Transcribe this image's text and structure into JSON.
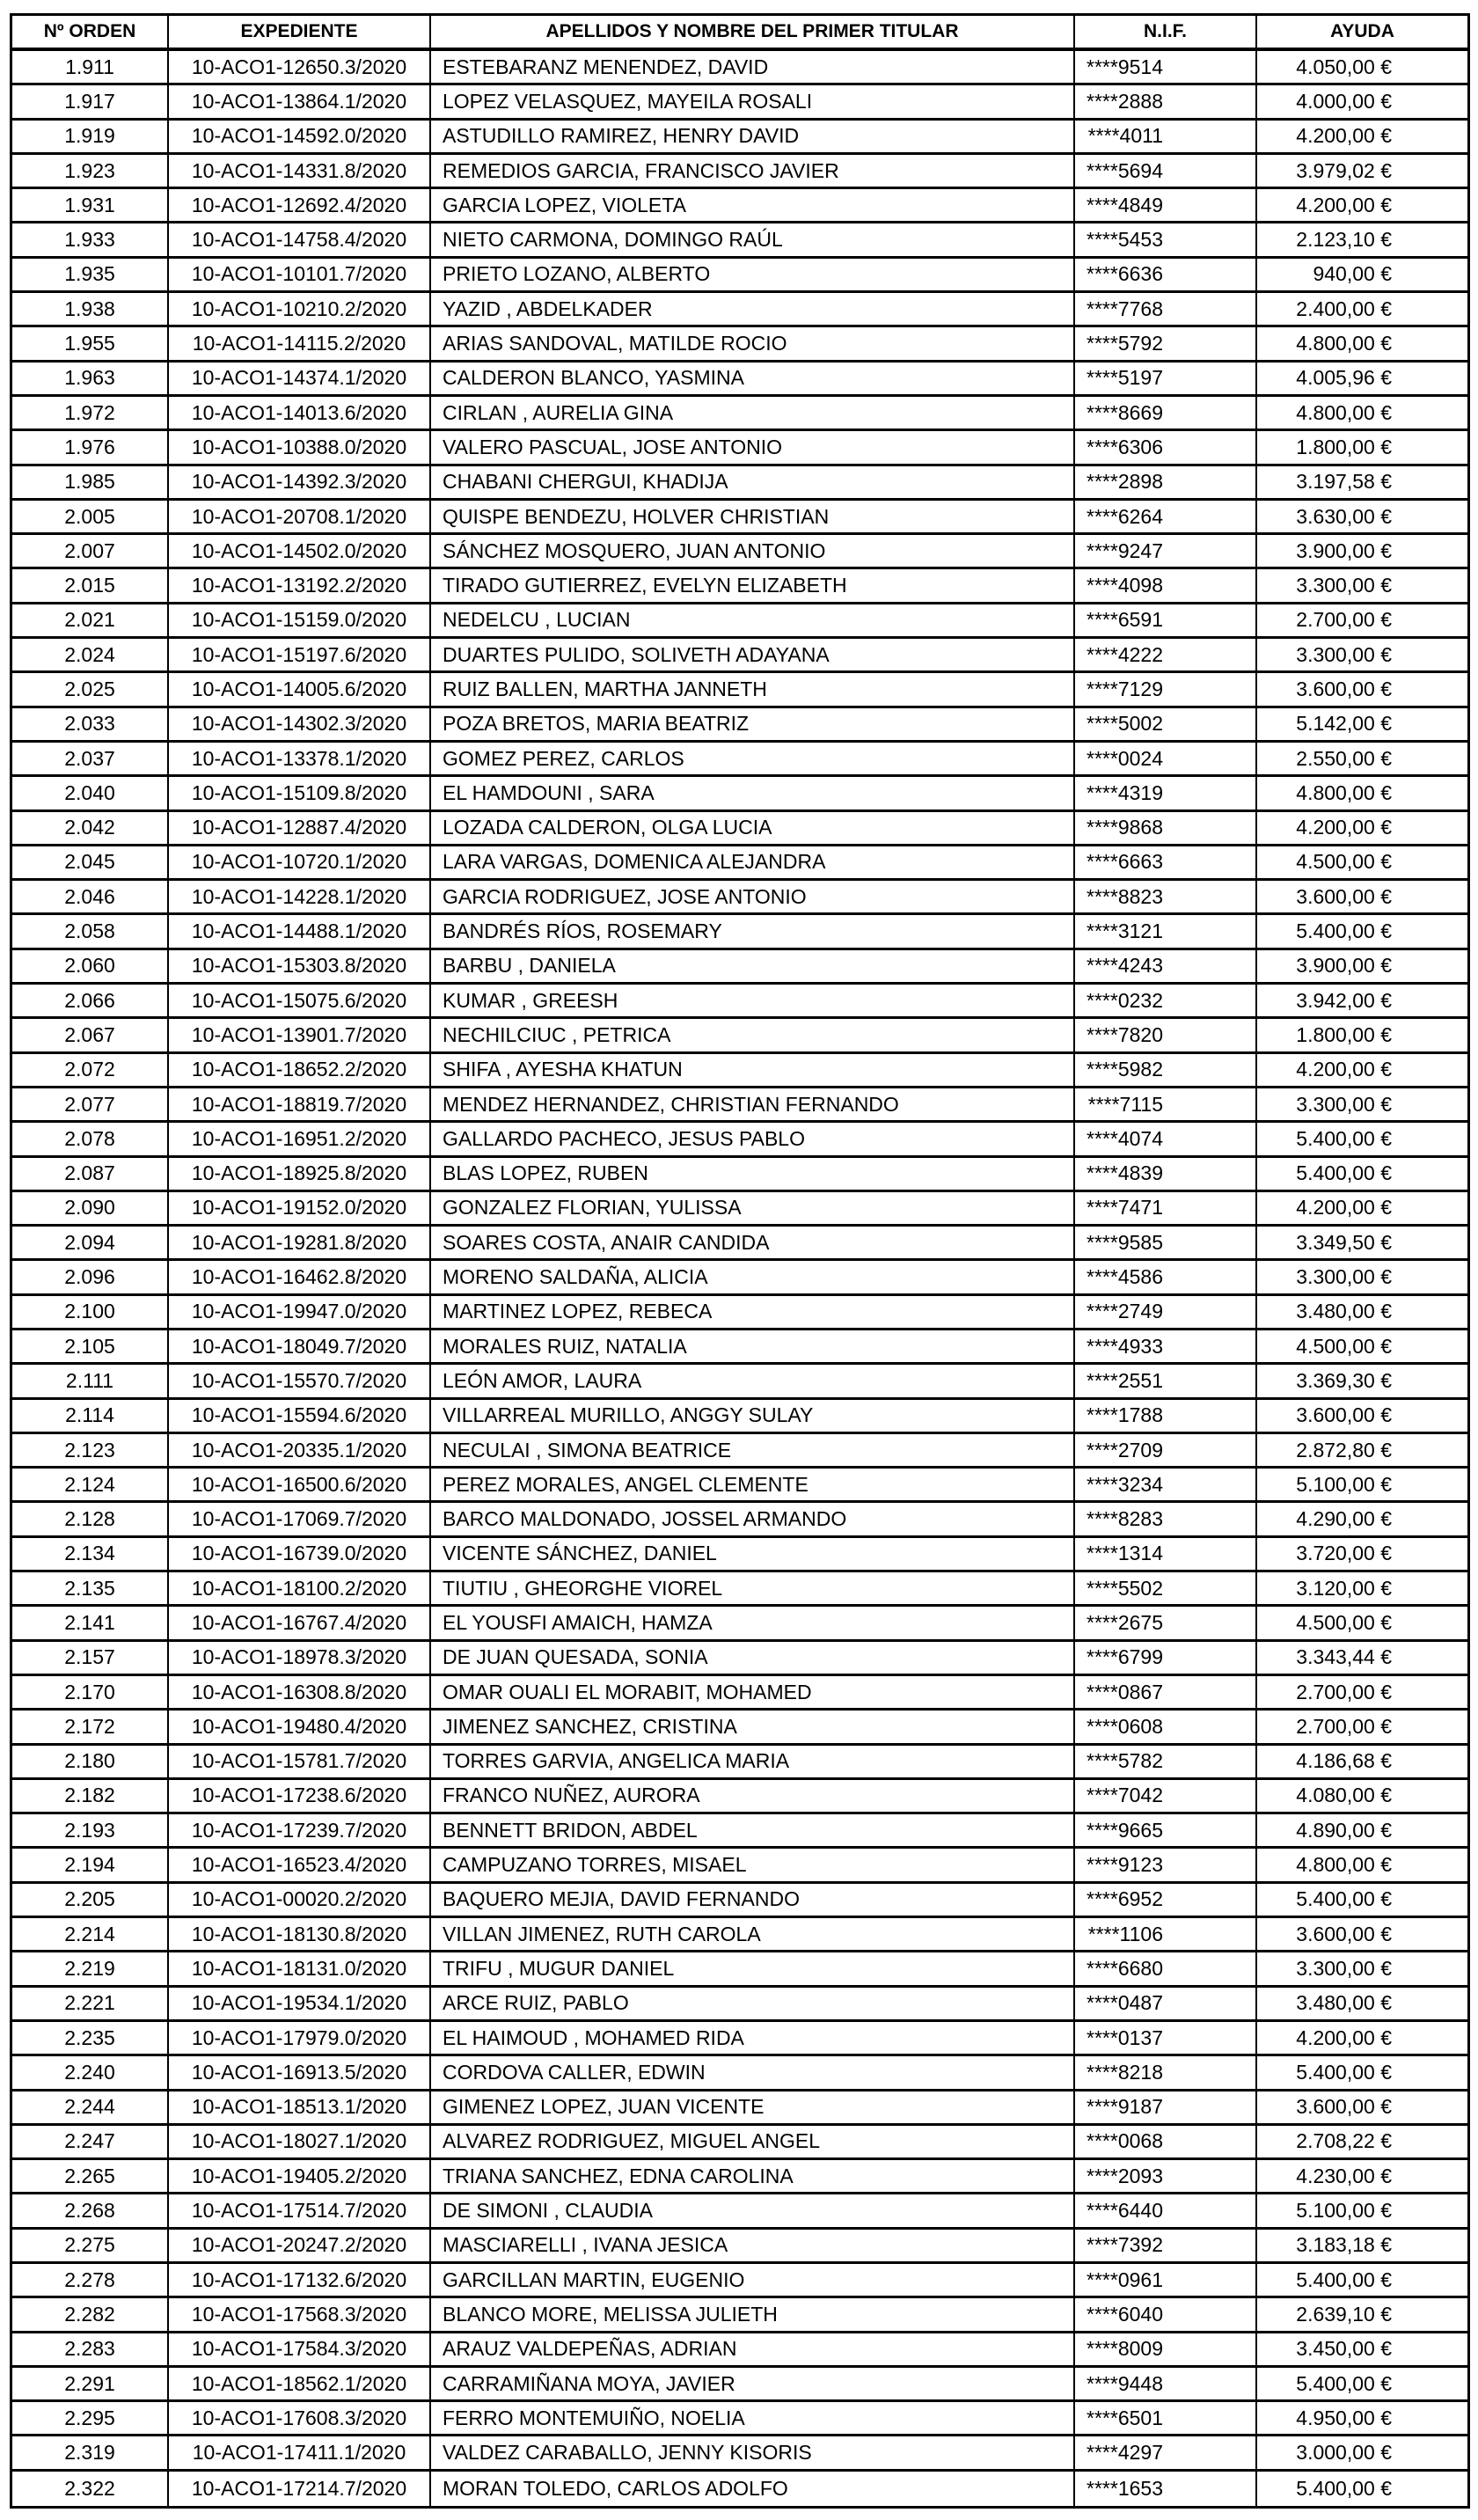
{
  "table": {
    "headers": [
      "Nº ORDEN",
      "EXPEDIENTE",
      "APELLIDOS Y NOMBRE DEL PRIMER TITULAR",
      "N.I.F.",
      "AYUDA"
    ],
    "rows": [
      [
        "1.911",
        "10-ACO1-12650.3/2020",
        "ESTEBARANZ MENENDEZ, DAVID",
        "****9514",
        "4.050,00 €"
      ],
      [
        "1.917",
        "10-ACO1-13864.1/2020",
        "LOPEZ VELASQUEZ, MAYEILA ROSALI",
        "****2888",
        "4.000,00 €"
      ],
      [
        "1.919",
        "10-ACO1-14592.0/2020",
        "ASTUDILLO RAMIREZ, HENRY DAVID",
        "****4011",
        "4.200,00 €"
      ],
      [
        "1.923",
        "10-ACO1-14331.8/2020",
        "REMEDIOS GARCIA, FRANCISCO JAVIER",
        "****5694",
        "3.979,02 €"
      ],
      [
        "1.931",
        "10-ACO1-12692.4/2020",
        "GARCIA LOPEZ, VIOLETA",
        "****4849",
        "4.200,00 €"
      ],
      [
        "1.933",
        "10-ACO1-14758.4/2020",
        "NIETO CARMONA, DOMINGO RAÚL",
        "****5453",
        "2.123,10 €"
      ],
      [
        "1.935",
        "10-ACO1-10101.7/2020",
        "PRIETO LOZANO, ALBERTO",
        "****6636",
        "940,00 €"
      ],
      [
        "1.938",
        "10-ACO1-10210.2/2020",
        "YAZID , ABDELKADER",
        "****7768",
        "2.400,00 €"
      ],
      [
        "1.955",
        "10-ACO1-14115.2/2020",
        "ARIAS SANDOVAL, MATILDE ROCIO",
        "****5792",
        "4.800,00 €"
      ],
      [
        "1.963",
        "10-ACO1-14374.1/2020",
        "CALDERON BLANCO, YASMINA",
        "****5197",
        "4.005,96 €"
      ],
      [
        "1.972",
        "10-ACO1-14013.6/2020",
        "CIRLAN , AURELIA GINA",
        "****8669",
        "4.800,00 €"
      ],
      [
        "1.976",
        "10-ACO1-10388.0/2020",
        "VALERO PASCUAL, JOSE ANTONIO",
        "****6306",
        "1.800,00 €"
      ],
      [
        "1.985",
        "10-ACO1-14392.3/2020",
        "CHABANI CHERGUI, KHADIJA",
        "****2898",
        "3.197,58 €"
      ],
      [
        "2.005",
        "10-ACO1-20708.1/2020",
        "QUISPE BENDEZU, HOLVER CHRISTIAN",
        "****6264",
        "3.630,00 €"
      ],
      [
        "2.007",
        "10-ACO1-14502.0/2020",
        "SÁNCHEZ MOSQUERO, JUAN ANTONIO",
        "****9247",
        "3.900,00 €"
      ],
      [
        "2.015",
        "10-ACO1-13192.2/2020",
        "TIRADO GUTIERREZ, EVELYN ELIZABETH",
        "****4098",
        "3.300,00 €"
      ],
      [
        "2.021",
        "10-ACO1-15159.0/2020",
        "NEDELCU , LUCIAN",
        "****6591",
        "2.700,00 €"
      ],
      [
        "2.024",
        "10-ACO1-15197.6/2020",
        "DUARTES PULIDO, SOLIVETH ADAYANA",
        "****4222",
        "3.300,00 €"
      ],
      [
        "2.025",
        "10-ACO1-14005.6/2020",
        "RUIZ BALLEN, MARTHA JANNETH",
        "****7129",
        "3.600,00 €"
      ],
      [
        "2.033",
        "10-ACO1-14302.3/2020",
        "POZA BRETOS, MARIA BEATRIZ",
        "****5002",
        "5.142,00 €"
      ],
      [
        "2.037",
        "10-ACO1-13378.1/2020",
        "GOMEZ PEREZ, CARLOS",
        "****0024",
        "2.550,00 €"
      ],
      [
        "2.040",
        "10-ACO1-15109.8/2020",
        "EL HAMDOUNI , SARA",
        "****4319",
        "4.800,00 €"
      ],
      [
        "2.042",
        "10-ACO1-12887.4/2020",
        "LOZADA CALDERON, OLGA LUCIA",
        "****9868",
        "4.200,00 €"
      ],
      [
        "2.045",
        "10-ACO1-10720.1/2020",
        "LARA VARGAS, DOMENICA ALEJANDRA",
        "****6663",
        "4.500,00 €"
      ],
      [
        "2.046",
        "10-ACO1-14228.1/2020",
        "GARCIA RODRIGUEZ, JOSE ANTONIO",
        "****8823",
        "3.600,00 €"
      ],
      [
        "2.058",
        "10-ACO1-14488.1/2020",
        "BANDRÉS RÍOS, ROSEMARY",
        "****3121",
        "5.400,00 €"
      ],
      [
        "2.060",
        "10-ACO1-15303.8/2020",
        "BARBU , DANIELA",
        "****4243",
        "3.900,00 €"
      ],
      [
        "2.066",
        "10-ACO1-15075.6/2020",
        "KUMAR , GREESH",
        "****0232",
        "3.942,00 €"
      ],
      [
        "2.067",
        "10-ACO1-13901.7/2020",
        "NECHILCIUC , PETRICA",
        "****7820",
        "1.800,00 €"
      ],
      [
        "2.072",
        "10-ACO1-18652.2/2020",
        "SHIFA , AYESHA KHATUN",
        "****5982",
        "4.200,00 €"
      ],
      [
        "2.077",
        "10-ACO1-18819.7/2020",
        "MENDEZ HERNANDEZ, CHRISTIAN FERNANDO",
        "****7115",
        "3.300,00 €"
      ],
      [
        "2.078",
        "10-ACO1-16951.2/2020",
        "GALLARDO PACHECO, JESUS PABLO",
        "****4074",
        "5.400,00 €"
      ],
      [
        "2.087",
        "10-ACO1-18925.8/2020",
        "BLAS LOPEZ, RUBEN",
        "****4839",
        "5.400,00 €"
      ],
      [
        "2.090",
        "10-ACO1-19152.0/2020",
        "GONZALEZ FLORIAN, YULISSA",
        "****7471",
        "4.200,00 €"
      ],
      [
        "2.094",
        "10-ACO1-19281.8/2020",
        "SOARES COSTA, ANAIR CANDIDA",
        "****9585",
        "3.349,50 €"
      ],
      [
        "2.096",
        "10-ACO1-16462.8/2020",
        "MORENO SALDAÑA, ALICIA",
        "****4586",
        "3.300,00 €"
      ],
      [
        "2.100",
        "10-ACO1-19947.0/2020",
        "MARTINEZ LOPEZ, REBECA",
        "****2749",
        "3.480,00 €"
      ],
      [
        "2.105",
        "10-ACO1-18049.7/2020",
        "MORALES RUIZ, NATALIA",
        "****4933",
        "4.500,00 €"
      ],
      [
        "2.111",
        "10-ACO1-15570.7/2020",
        "LEÓN AMOR, LAURA",
        "****2551",
        "3.369,30 €"
      ],
      [
        "2.114",
        "10-ACO1-15594.6/2020",
        "VILLARREAL MURILLO, ANGGY SULAY",
        "****1788",
        "3.600,00 €"
      ],
      [
        "2.123",
        "10-ACO1-20335.1/2020",
        "NECULAI , SIMONA BEATRICE",
        "****2709",
        "2.872,80 €"
      ],
      [
        "2.124",
        "10-ACO1-16500.6/2020",
        "PEREZ MORALES, ANGEL CLEMENTE",
        "****3234",
        "5.100,00 €"
      ],
      [
        "2.128",
        "10-ACO1-17069.7/2020",
        "BARCO MALDONADO, JOSSEL ARMANDO",
        "****8283",
        "4.290,00 €"
      ],
      [
        "2.134",
        "10-ACO1-16739.0/2020",
        "VICENTE SÁNCHEZ, DANIEL",
        "****1314",
        "3.720,00 €"
      ],
      [
        "2.135",
        "10-ACO1-18100.2/2020",
        "TIUTIU , GHEORGHE VIOREL",
        "****5502",
        "3.120,00 €"
      ],
      [
        "2.141",
        "10-ACO1-16767.4/2020",
        "EL YOUSFI AMAICH, HAMZA",
        "****2675",
        "4.500,00 €"
      ],
      [
        "2.157",
        "10-ACO1-18978.3/2020",
        "DE JUAN QUESADA, SONIA",
        "****6799",
        "3.343,44 €"
      ],
      [
        "2.170",
        "10-ACO1-16308.8/2020",
        "OMAR OUALI EL MORABIT, MOHAMED",
        "****0867",
        "2.700,00 €"
      ],
      [
        "2.172",
        "10-ACO1-19480.4/2020",
        "JIMENEZ SANCHEZ, CRISTINA",
        "****0608",
        "2.700,00 €"
      ],
      [
        "2.180",
        "10-ACO1-15781.7/2020",
        "TORRES GARVIA, ANGELICA MARIA",
        "****5782",
        "4.186,68 €"
      ],
      [
        "2.182",
        "10-ACO1-17238.6/2020",
        "FRANCO NUÑEZ, AURORA",
        "****7042",
        "4.080,00 €"
      ],
      [
        "2.193",
        "10-ACO1-17239.7/2020",
        "BENNETT BRIDON, ABDEL",
        "****9665",
        "4.890,00 €"
      ],
      [
        "2.194",
        "10-ACO1-16523.4/2020",
        "CAMPUZANO TORRES, MISAEL",
        "****9123",
        "4.800,00 €"
      ],
      [
        "2.205",
        "10-ACO1-00020.2/2020",
        "BAQUERO MEJIA, DAVID FERNANDO",
        "****6952",
        "5.400,00 €"
      ],
      [
        "2.214",
        "10-ACO1-18130.8/2020",
        "VILLAN JIMENEZ, RUTH CAROLA",
        "****1106",
        "3.600,00 €"
      ],
      [
        "2.219",
        "10-ACO1-18131.0/2020",
        "TRIFU , MUGUR DANIEL",
        "****6680",
        "3.300,00 €"
      ],
      [
        "2.221",
        "10-ACO1-19534.1/2020",
        "ARCE RUIZ, PABLO",
        "****0487",
        "3.480,00 €"
      ],
      [
        "2.235",
        "10-ACO1-17979.0/2020",
        "EL HAIMOUD , MOHAMED RIDA",
        "****0137",
        "4.200,00 €"
      ],
      [
        "2.240",
        "10-ACO1-16913.5/2020",
        "CORDOVA CALLER, EDWIN",
        "****8218",
        "5.400,00 €"
      ],
      [
        "2.244",
        "10-ACO1-18513.1/2020",
        "GIMENEZ LOPEZ, JUAN VICENTE",
        "****9187",
        "3.600,00 €"
      ],
      [
        "2.247",
        "10-ACO1-18027.1/2020",
        "ALVAREZ RODRIGUEZ, MIGUEL ANGEL",
        "****0068",
        "2.708,22 €"
      ],
      [
        "2.265",
        "10-ACO1-19405.2/2020",
        "TRIANA SANCHEZ, EDNA CAROLINA",
        "****2093",
        "4.230,00 €"
      ],
      [
        "2.268",
        "10-ACO1-17514.7/2020",
        "DE SIMONI , CLAUDIA",
        "****6440",
        "5.100,00 €"
      ],
      [
        "2.275",
        "10-ACO1-20247.2/2020",
        "MASCIARELLI , IVANA JESICA",
        "****7392",
        "3.183,18 €"
      ],
      [
        "2.278",
        "10-ACO1-17132.6/2020",
        "GARCILLAN MARTIN, EUGENIO",
        "****0961",
        "5.400,00 €"
      ],
      [
        "2.282",
        "10-ACO1-17568.3/2020",
        "BLANCO MORE, MELISSA JULIETH",
        "****6040",
        "2.639,10 €"
      ],
      [
        "2.283",
        "10-ACO1-17584.3/2020",
        "ARAUZ VALDEPEÑAS, ADRIAN",
        "****8009",
        "3.450,00 €"
      ],
      [
        "2.291",
        "10-ACO1-18562.1/2020",
        "CARRAMIÑANA MOYA, JAVIER",
        "****9448",
        "5.400,00 €"
      ],
      [
        "2.295",
        "10-ACO1-17608.3/2020",
        "FERRO MONTEMUIÑO, NOELIA",
        "****6501",
        "4.950,00 €"
      ],
      [
        "2.319",
        "10-ACO1-17411.1/2020",
        "VALDEZ CARABALLO, JENNY KISORIS",
        "****4297",
        "3.000,00 €"
      ],
      [
        "2.322",
        "10-ACO1-17214.7/2020",
        "MORAN TOLEDO, CARLOS ADOLFO",
        "****1653",
        "5.400,00 €"
      ]
    ]
  }
}
